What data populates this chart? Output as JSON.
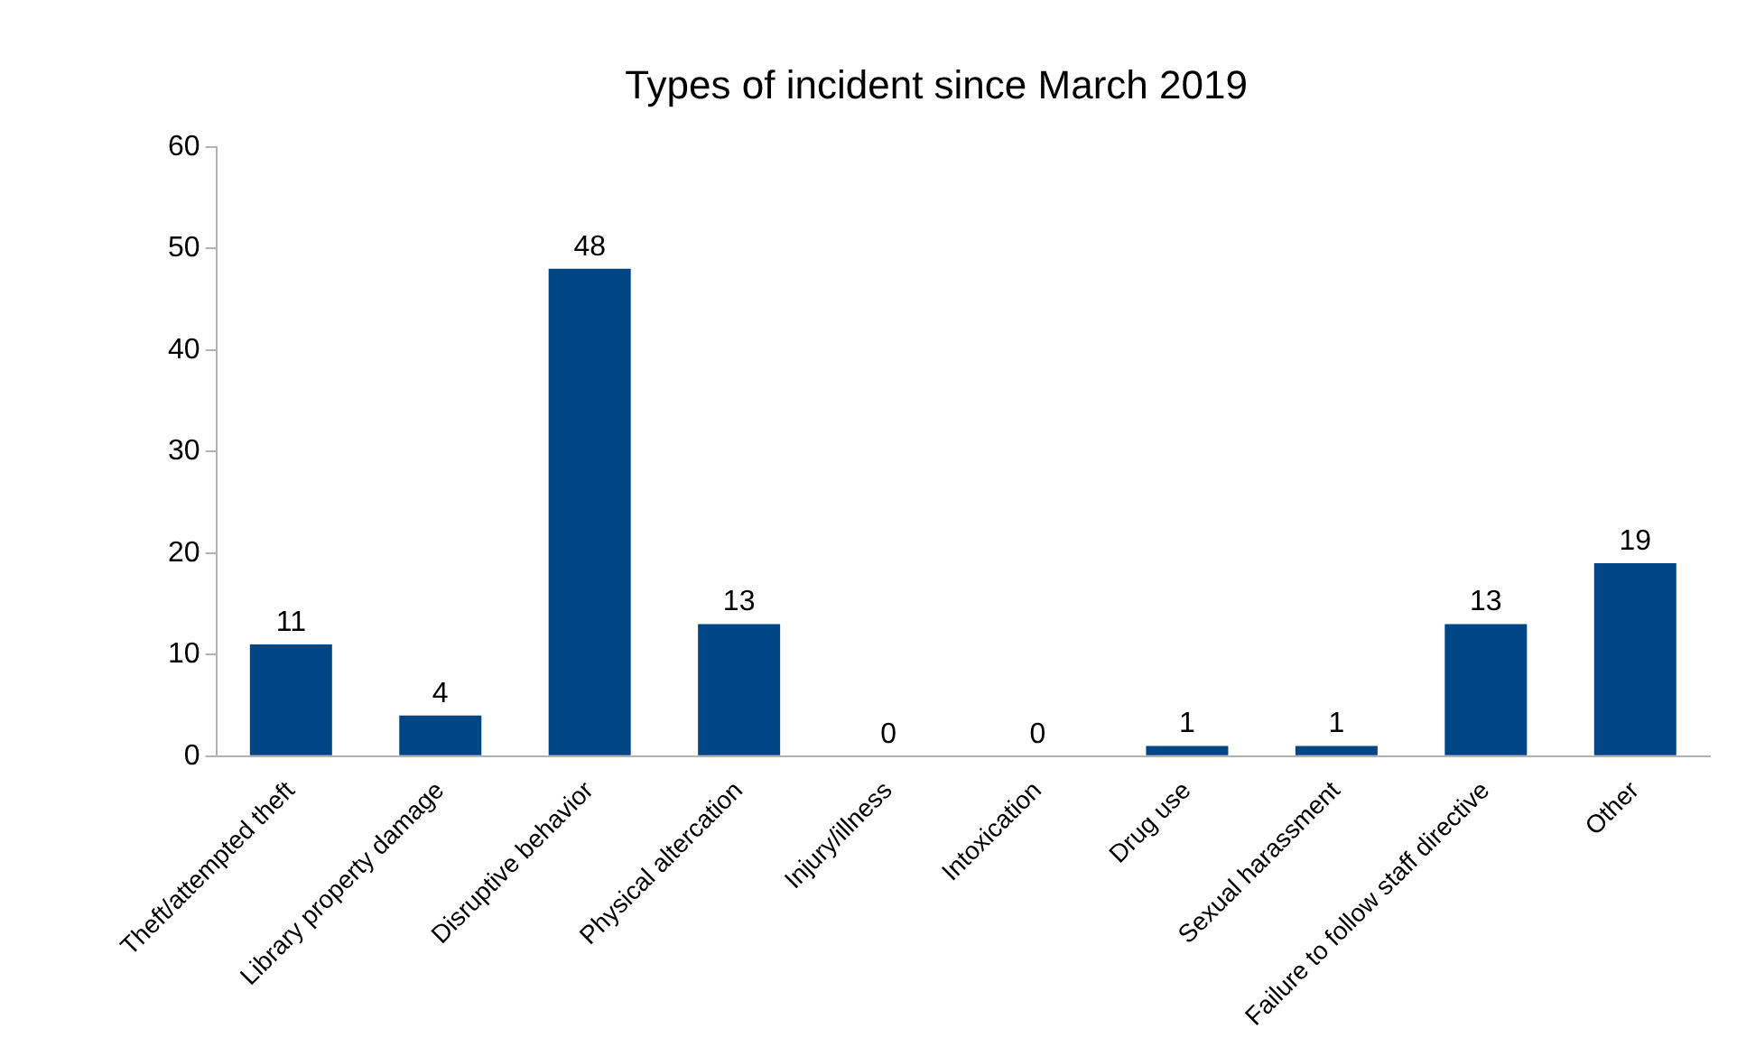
{
  "chart_data": {
    "type": "bar",
    "title": "Types of incident since March 2019",
    "categories": [
      "Theft/attempted theft",
      "Library property damage",
      "Disruptive behavior",
      "Physical altercation",
      "Injury/illness",
      "Intoxication",
      "Drug use",
      "Sexual harassment",
      "Failure to follow staff directive",
      "Other"
    ],
    "values": [
      11,
      4,
      48,
      13,
      0,
      0,
      1,
      1,
      13,
      19
    ],
    "color": "#004586",
    "ylim": [
      0,
      60
    ],
    "yticks": [
      0,
      10,
      20,
      30,
      40,
      50,
      60
    ],
    "grid": false,
    "legend": false,
    "data_labels": true
  }
}
